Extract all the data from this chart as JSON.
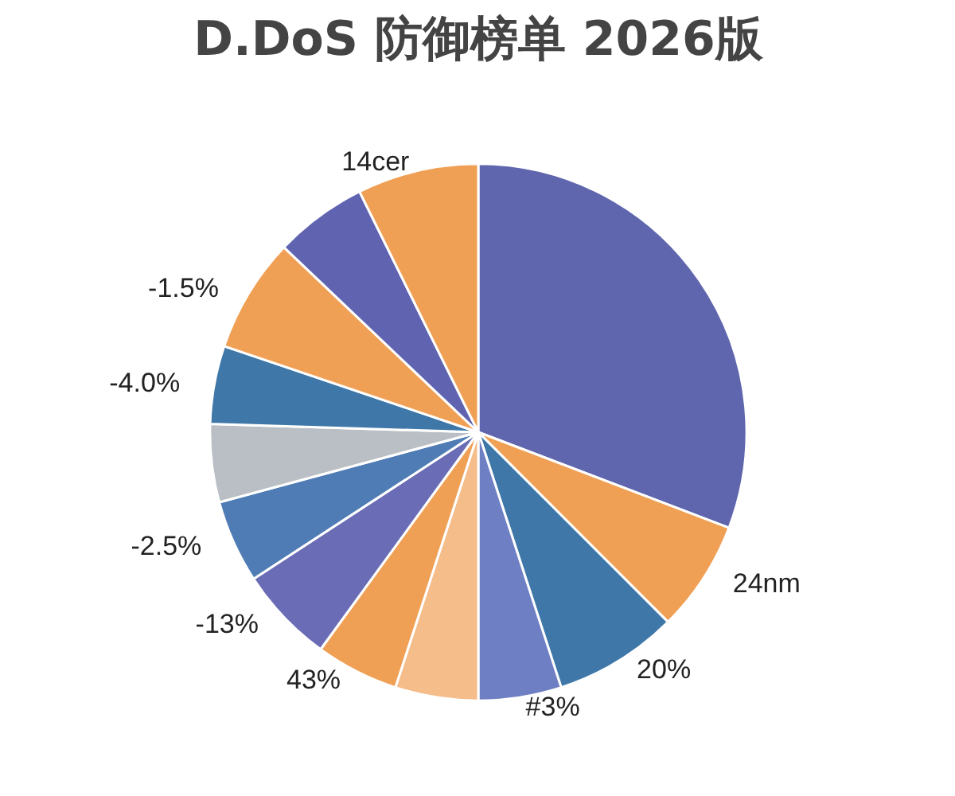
{
  "chart_data": {
    "type": "pie",
    "title": "D.DoS 防御榜单 2026版",
    "categories": [
      null,
      "24nm",
      "20%",
      "#3%",
      null,
      "43%",
      "-13%",
      "-2.5%",
      null,
      "-4.0%",
      "-1.5%",
      null,
      "14cer"
    ],
    "values": [
      30.8,
      6.7,
      7.5,
      5.0,
      5.0,
      5.0,
      5.8,
      5.0,
      4.7,
      4.7,
      6.9,
      5.6,
      7.3
    ],
    "colors": [
      "#5f66ad",
      "#f0a055",
      "#3f78a8",
      "#6f7fc4",
      "#f5bd8a",
      "#f0a055",
      "#6a6cb5",
      "#4f7cb5",
      "#b9bfc4",
      "#3f78a8",
      "#f0a055",
      "#6064b0",
      "#f0a055"
    ],
    "legend": false
  }
}
